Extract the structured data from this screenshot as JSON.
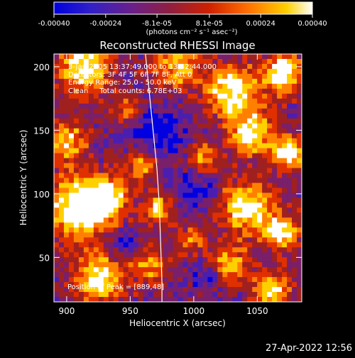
{
  "colorbar": {
    "tick_labels": [
      "-0.00040",
      "-0.00024",
      "-8.1e-05",
      "8.1e-05",
      "0.00024",
      "0.00040"
    ],
    "tick_values": [
      -0.0004,
      -0.00024,
      -8.1e-05,
      8.1e-05,
      0.00024,
      0.0004
    ],
    "range": [
      -0.0004,
      0.0004
    ],
    "unit_label": "(photons cm⁻² s⁻¹ asec⁻²)",
    "colors": [
      "#0000e0",
      "#4a1fb0",
      "#7a1f6a",
      "#a02020",
      "#e03000",
      "#ff8000",
      "#ffd000",
      "#ffffff"
    ]
  },
  "chart_data": {
    "type": "heatmap",
    "title": "Reconstructed RHESSI Image",
    "xlabel": "Heliocentric X (arcsec)",
    "ylabel": "Heliocentric Y (arcsec)",
    "xlim": [
      890,
      1085
    ],
    "ylim": [
      15,
      210
    ],
    "x_ticks": [
      900,
      950,
      1000,
      1050
    ],
    "y_ticks": [
      50,
      100,
      150,
      200
    ],
    "limb_curve": [
      [
        962,
        210
      ],
      [
        965,
        180
      ],
      [
        968,
        150
      ],
      [
        971,
        120
      ],
      [
        973,
        90
      ],
      [
        974,
        60
      ],
      [
        975,
        30
      ],
      [
        975,
        15
      ]
    ],
    "peak": [
      889,
      48
    ]
  },
  "info": {
    "line1": "3-Jan-2005 13:37:49.000 to 13:42:44.000",
    "line2": "Detectors: 3F 4F 5F 6F 7F 8F, Att 0",
    "line3": "Energy Range: 25.0 - 50.0 keV",
    "line4": "Clean     Total counts: 6.78E+03",
    "peak_text": "Position of Peak = [889,48]"
  },
  "timestamp": "27-Apr-2022 12:56"
}
